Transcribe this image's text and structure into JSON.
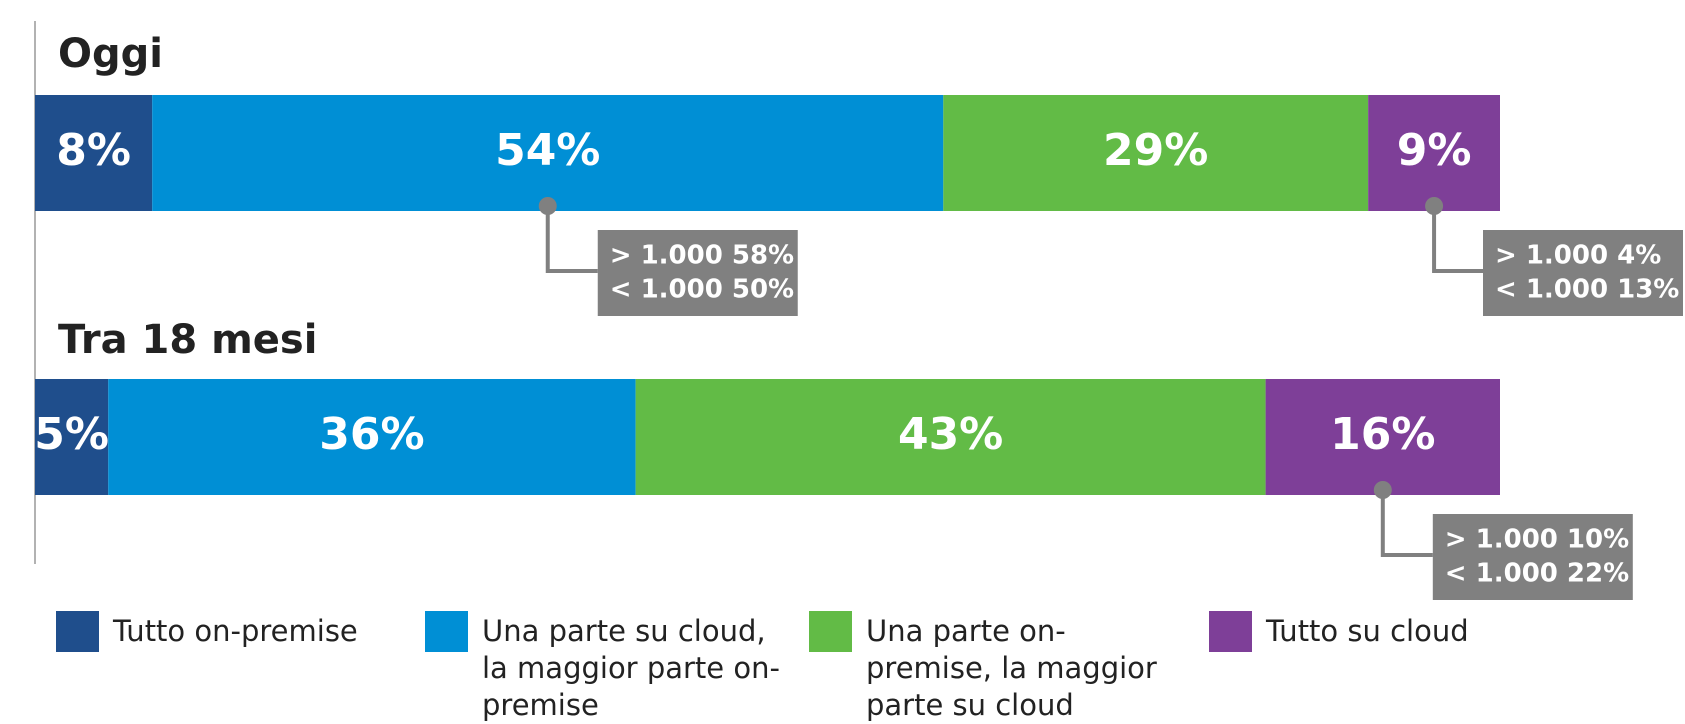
{
  "chart_data": {
    "type": "bar",
    "orientation": "horizontal",
    "stacked": true,
    "categories": [
      "Oggi",
      "Tra 18 mesi"
    ],
    "xlim": [
      0,
      100
    ],
    "series": [
      {
        "name": "Tutto on-premise",
        "color": "#1f4e8c",
        "values": [
          8,
          5
        ],
        "value_labels": [
          "8%",
          "5%"
        ],
        "annotations": [
          null,
          null
        ]
      },
      {
        "name": "Una parte su cloud, la maggior parte on-premise",
        "color": "#008fd5",
        "values": [
          54,
          36
        ],
        "value_labels": [
          "54%",
          "36%"
        ],
        "annotations": [
          [
            "> 1.000 58%",
            "< 1.000 50%"
          ],
          null
        ]
      },
      {
        "name": "Una parte on-premise, la maggior parte su cloud",
        "color": "#62bb46",
        "values": [
          29,
          43
        ],
        "value_labels": [
          "29%",
          "43%"
        ],
        "annotations": [
          null,
          null
        ]
      },
      {
        "name": "Tutto su cloud",
        "color": "#7e3f98",
        "values": [
          9,
          16
        ],
        "value_labels": [
          "9%",
          "16%"
        ],
        "annotations": [
          [
            "> 1.000  4%",
            "< 1.000  13%"
          ],
          [
            "> 1.000  10%",
            "< 1.000  22%"
          ]
        ]
      }
    ]
  }
}
